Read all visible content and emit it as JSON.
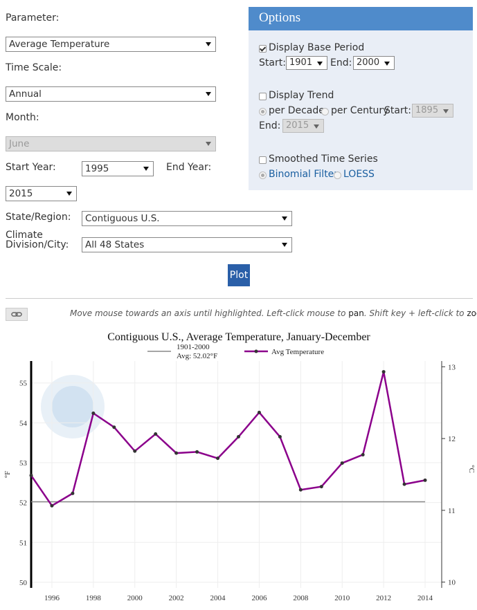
{
  "form": {
    "parameter_label": "Parameter:",
    "parameter": "Average Temperature",
    "timescale_label": "Time Scale:",
    "timescale": "Annual",
    "month_label": "Month:",
    "month": "June",
    "start_year_label": "Start Year:",
    "start_year": "1995",
    "end_year_label": "End Year:",
    "end_year": "2015",
    "region_label": "State/Region:",
    "region": "Contiguous U.S.",
    "division_label": "Climate Division/City:",
    "division": "All 48 States",
    "button": "Plot"
  },
  "options": {
    "title": "Options",
    "base_period": "Display Base Period",
    "base_start_label": "Start:",
    "base_start": "1901",
    "base_end_label": "End:",
    "base_end": "2000",
    "trend": "Display Trend",
    "per_decade": "per Decade",
    "per_century": "per Century",
    "trend_start_label": "Start:",
    "trend_start": "1895",
    "trend_end_label": "End:",
    "trend_end": "2015",
    "smoothed": "Smoothed Time Series",
    "binomial": "Binomial Filter",
    "loess": "LOESS"
  },
  "hint": [
    "Move mouse towards an axis until highlighted. Left-click mouse to ",
    "pan",
    ". Shift key + left-click to ",
    "zoom",
    "."
  ],
  "chart_data": {
    "type": "line",
    "title": "Contiguous U.S., Average Temperature, January-December",
    "x": [
      1995,
      1996,
      1997,
      1998,
      1999,
      2000,
      2001,
      2002,
      2003,
      2004,
      2005,
      2006,
      2007,
      2008,
      2009,
      2010,
      2011,
      2012,
      2013,
      2014
    ],
    "series": [
      {
        "name": "Avg Temperature",
        "color": "#8b008b",
        "values": [
          52.68,
          51.92,
          52.23,
          54.24,
          53.89,
          53.29,
          53.72,
          53.24,
          53.27,
          53.11,
          53.65,
          54.26,
          53.65,
          52.32,
          52.4,
          52.99,
          53.2,
          55.28,
          52.46,
          52.56
        ]
      }
    ],
    "reference": {
      "name": "1901-2000",
      "label": "Avg: 52.02°F",
      "value": 52.02,
      "color": "#888888"
    },
    "ylabel": "°F",
    "y2label": "°C",
    "xlim": [
      1995,
      2014.8
    ],
    "xticks": [
      1996,
      1998,
      2000,
      2002,
      2004,
      2006,
      2008,
      2010,
      2012,
      2014
    ],
    "ylim": [
      49.86,
      55.55
    ],
    "yticks": [
      50,
      51,
      52,
      53,
      54,
      55
    ],
    "y2lim": [
      9.92,
      13.08
    ],
    "y2ticks": [
      10,
      11,
      12,
      13
    ],
    "grid": true
  }
}
